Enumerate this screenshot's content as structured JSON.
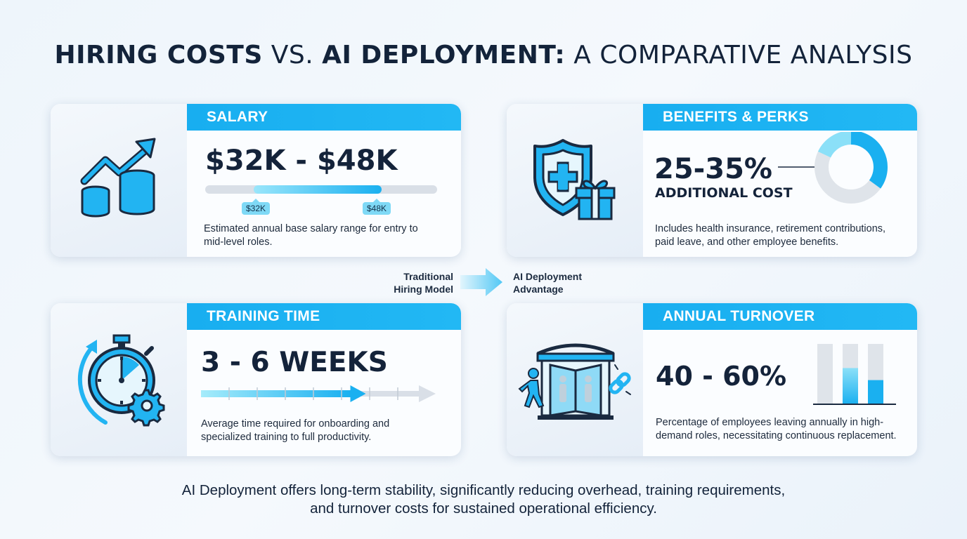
{
  "title": {
    "bold_part_1": "HIRING COSTS",
    "light_part_1": " VS. ",
    "bold_part_2": "AI DEPLOYMENT:",
    "light_part_2": " A COMPARATIVE ANALYSIS"
  },
  "cards": {
    "salary": {
      "heading": "SALARY",
      "value": "$32K - $48K",
      "range_min_label": "$32K",
      "range_max_label": "$48K",
      "range_fill_start": 0.21,
      "range_fill_end": 0.76,
      "description": "Estimated annual base salary range for entry to mid-level roles.",
      "icon": "growth-coins-icon"
    },
    "benefits": {
      "heading": "BENEFITS & PERKS",
      "value": "25-35%",
      "subvalue": "ADDITIONAL COST",
      "donut_fraction_min": 0.25,
      "donut_fraction_max": 0.35,
      "description": "Includes health insurance, retirement contributions, paid leave, and other employee benefits.",
      "icon": "shield-gift-icon"
    },
    "training": {
      "heading": "TRAINING TIME",
      "value": "3 - 6 WEEKS",
      "progress_fraction": 0.75,
      "description": "Average time required for onboarding and specialized training to full productivity.",
      "icon": "stopwatch-gear-icon"
    },
    "turnover": {
      "heading": "ANNUAL TURNOVER",
      "value": "40 - 60%",
      "bar_levels": [
        0,
        0.6,
        0.4
      ],
      "description": "Percentage of employees leaving annually in high-demand roles, necessitating continuous replacement.",
      "icon": "revolving-door-icon"
    }
  },
  "transition": {
    "left_label_line1": "Traditional",
    "left_label_line2": "Hiring Model",
    "right_label_line1": "AI Deployment",
    "right_label_line2": "Advantage"
  },
  "summary": {
    "line1": "AI Deployment offers long-term stability, significantly reducing overhead, training requirements,",
    "line2": "and turnover costs for sustained operational efficiency."
  },
  "colors": {
    "accent": "#1ab0f0",
    "light_accent": "#7fd9f6",
    "dark_text": "#14233a",
    "track": "#d8dee6"
  }
}
